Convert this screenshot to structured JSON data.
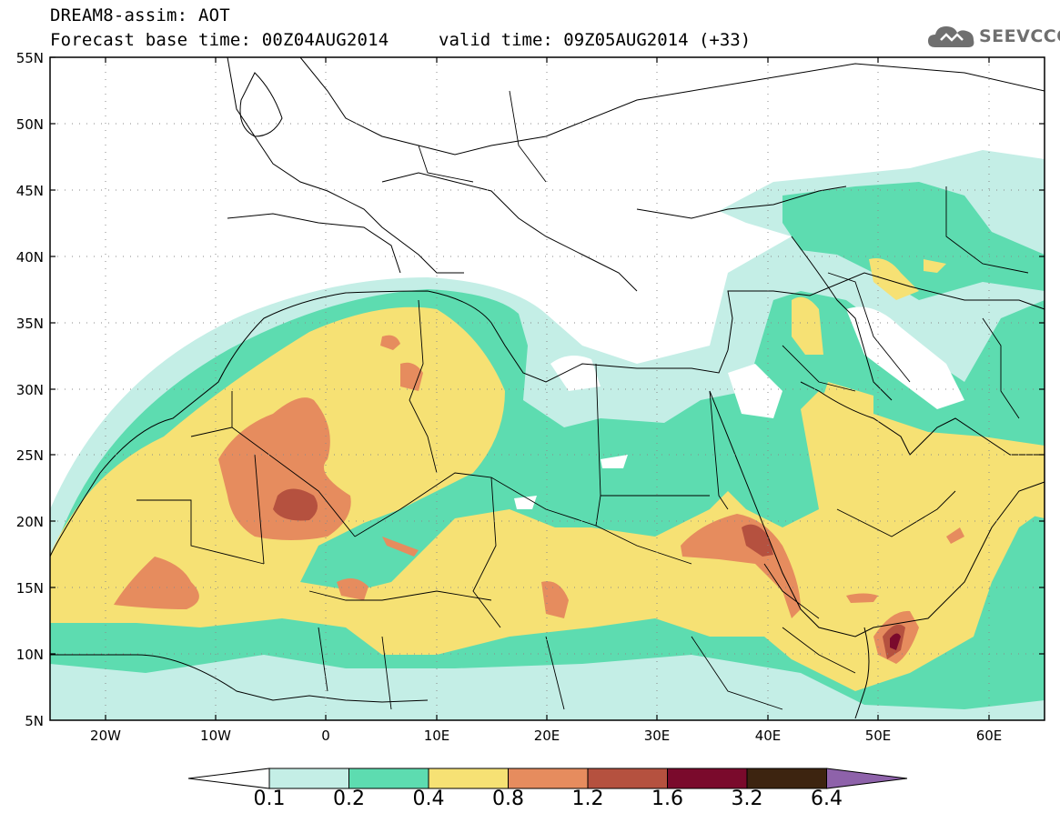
{
  "header": {
    "title": "DREAM8-assim: AOT",
    "base_time": "Forecast base time: 00Z04AUG2014",
    "valid_time": "valid time: 09Z05AUG2014 (+33)"
  },
  "logo": {
    "text": "SEEVCCC",
    "icon": "cloud-icon"
  },
  "map": {
    "lat_labels": [
      "55N",
      "50N",
      "45N",
      "40N",
      "35N",
      "30N",
      "25N",
      "20N",
      "15N",
      "10N",
      "5N"
    ],
    "lon_labels": [
      "20W",
      "10W",
      "0",
      "10E",
      "20E",
      "30E",
      "40E",
      "50E",
      "60E"
    ],
    "lat_range": [
      5,
      55
    ],
    "lon_range": [
      -25,
      65
    ],
    "grid": "dotted"
  },
  "legend": {
    "ticks": [
      "0.1",
      "0.2",
      "0.4",
      "0.8",
      "1.2",
      "1.6",
      "3.2",
      "6.4"
    ],
    "colors": {
      "under": "#ffffff",
      "c1": "#c4eee6",
      "c2": "#5ddcb0",
      "c3": "#f6e174",
      "c4": "#e68c5e",
      "c5": "#b5513f",
      "c6": "#7a0a2c",
      "c7": "#3d2410",
      "over": "#8e62aa"
    }
  }
}
